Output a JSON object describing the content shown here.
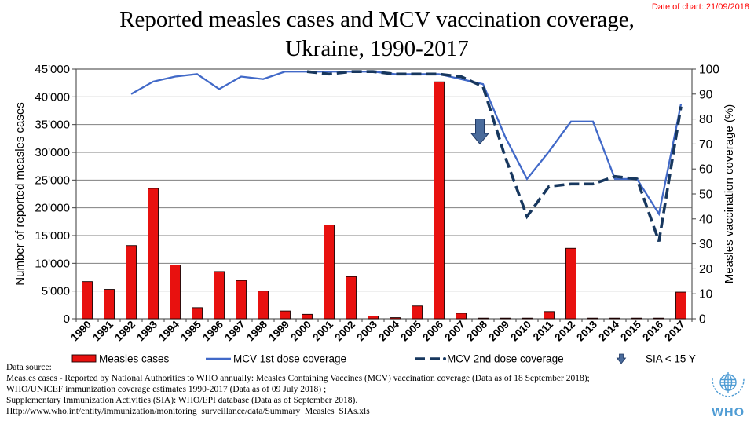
{
  "header": {
    "date_of_chart": "Date of chart: 21/09/2018",
    "title_line1": "Reported measles cases and MCV vaccination coverage,",
    "title_line2": "Ukraine, 1990-2017"
  },
  "chart_data": {
    "type": "bar",
    "combo": "bar + line, dual axis",
    "categories": [
      "1990",
      "1991",
      "1992",
      "1993",
      "1994",
      "1995",
      "1996",
      "1997",
      "1998",
      "1999",
      "2000",
      "2001",
      "2002",
      "2003",
      "2004",
      "2005",
      "2006",
      "2007",
      "2008",
      "2009",
      "2010",
      "2011",
      "2012",
      "2013",
      "2014",
      "2015",
      "2016",
      "2017"
    ],
    "series": [
      {
        "name": "Measles cases",
        "kind": "bar",
        "axis": "left",
        "color": "#e8110f",
        "values": [
          6700,
          5300,
          13200,
          23500,
          9700,
          2000,
          8500,
          6900,
          5000,
          1400,
          800,
          16900,
          7600,
          500,
          200,
          2300,
          42700,
          1000,
          100,
          60,
          40,
          1300,
          12700,
          50,
          100,
          100,
          100,
          4800
        ]
      },
      {
        "name": "MCV 1st dose coverage",
        "kind": "line",
        "axis": "right",
        "color": "#4169c8",
        "values": [
          null,
          null,
          90,
          95,
          97,
          98,
          92,
          97,
          96,
          99,
          99,
          99,
          99,
          99,
          98,
          98,
          98,
          96,
          94,
          73,
          56,
          67,
          79,
          79,
          56,
          56,
          42,
          86
        ]
      },
      {
        "name": "MCV 2nd dose coverage",
        "kind": "line-dashed",
        "axis": "right",
        "color": "#17375e",
        "values": [
          null,
          null,
          null,
          null,
          null,
          null,
          null,
          null,
          null,
          null,
          99,
          98,
          99,
          99,
          98,
          98,
          98,
          97,
          93,
          65,
          41,
          53,
          54,
          54,
          57,
          56,
          31,
          85
        ]
      },
      {
        "name": "SIA < 15 Y",
        "kind": "marker-arrow",
        "axis": "right",
        "color": "#4a6b9b",
        "marker": {
          "category": "2008",
          "from_pct": 80,
          "to_pct": 70
        }
      }
    ],
    "title": "Reported measles cases and MCV vaccination coverage, Ukraine, 1990-2017",
    "xlabel": "",
    "ylabel_left": "Number of reported measles cases",
    "ylabel_right": "Measles vaccination coverage (%)",
    "ylim_left": [
      0,
      45000
    ],
    "ytick_step_left": 5000,
    "ylim_right": [
      0,
      100
    ],
    "ytick_step_right": 10,
    "grid": "horizontal",
    "legend_position": "bottom"
  },
  "legend": {
    "items": [
      {
        "label": "Measles cases",
        "swatch": "bar"
      },
      {
        "label": "MCV 1st dose coverage",
        "swatch": "line"
      },
      {
        "label": "MCV 2nd dose coverage",
        "swatch": "dash-line"
      },
      {
        "label": "SIA < 15 Y",
        "swatch": "arrow"
      }
    ]
  },
  "footer": {
    "lines": [
      "Data source:",
      "Measles cases - Reported by National Authorities to WHO annually: Measles Containing Vaccines (MCV) vaccination coverage (Data as of 18 September 2018);",
      "WHO/UNICEF immunization coverage estimates 1990-2017 (Data as of 09 July 2018) ;",
      "Supplementary Immunization Activities (SIA): WHO/EPI database (Data as of September 2018).",
      "Http://www.who.int/entity/immunization/monitoring_surveillance/data/Summary_Measles_SIAs.xls"
    ]
  },
  "logo": {
    "text": "WHO"
  },
  "colors": {
    "bar_fill": "#e8110f",
    "mcv1_line": "#4169c8",
    "mcv2_line": "#17375e",
    "sia_arrow": "#4a6b9b",
    "date_text": "#ff0000",
    "who_blue": "#4f9cd4",
    "gridline": "#808080"
  }
}
